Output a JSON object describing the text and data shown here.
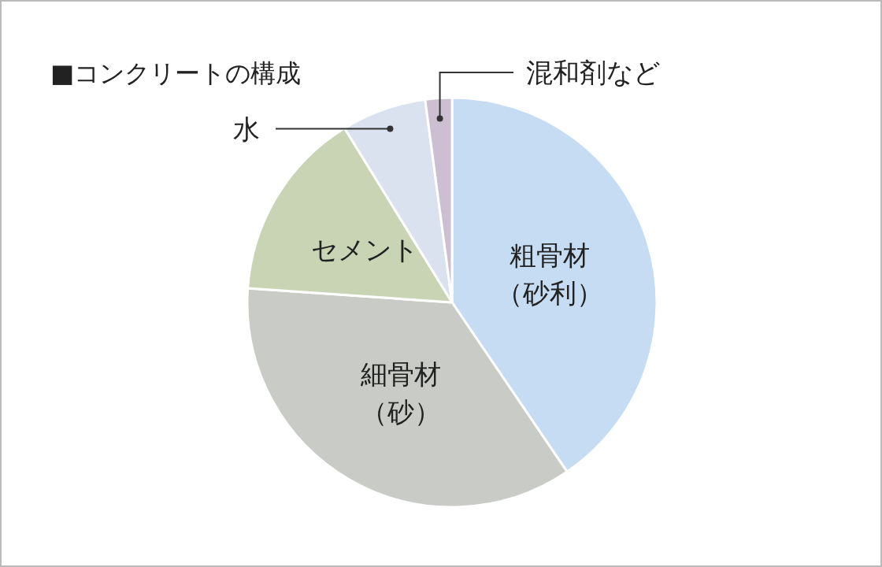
{
  "chart_data": {
    "type": "pie",
    "title": "■コンクリートの構成",
    "categories": [
      "粗骨材（砂利）",
      "細骨材（砂）",
      "セメント",
      "水",
      "混和剤など"
    ],
    "values": [
      40.5,
      35.6,
      15.1,
      6.7,
      2.1
    ],
    "colors": [
      "#c5dcf3",
      "#c9ccc6",
      "#c9d4b5",
      "#d9e2ee",
      "#cdbfd2"
    ]
  }
}
